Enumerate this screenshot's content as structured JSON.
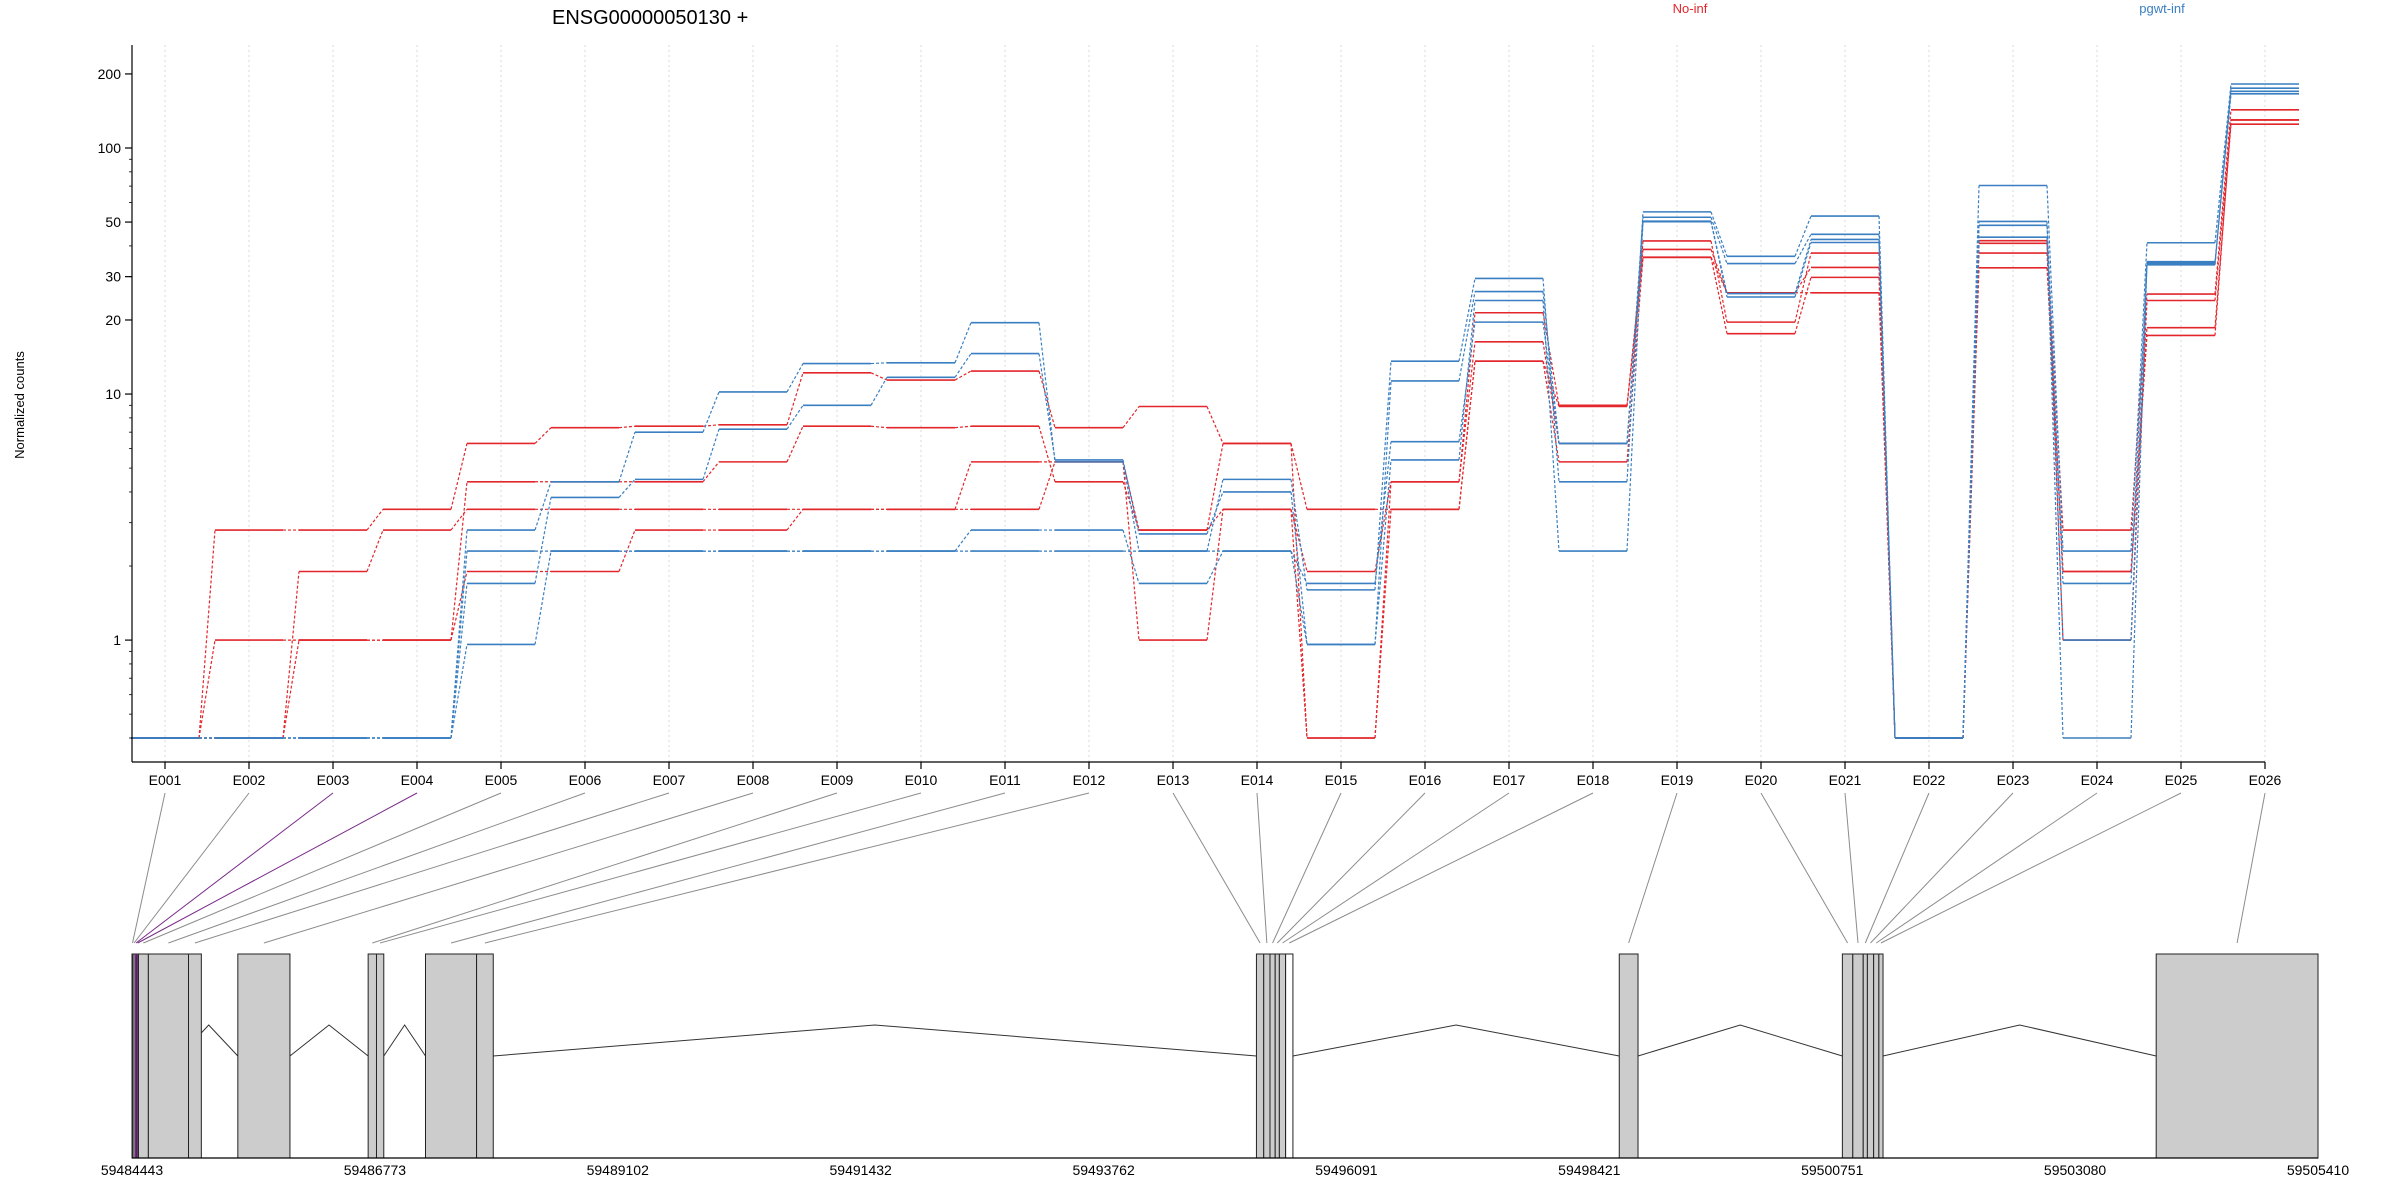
{
  "chart_data": {
    "type": "line",
    "title": "ENSG00000050130 +",
    "ylabel": "Normalized counts",
    "y_scale": "log",
    "y_ticks": [
      "200",
      "100",
      "50",
      "30",
      "20",
      "10",
      "1"
    ],
    "y_tick_values": [
      200,
      100,
      50,
      30,
      20,
      10,
      1
    ],
    "ylim": [
      0.4,
      230
    ],
    "zero_floor": 0.4,
    "grid": "vertical dotted lines per exon",
    "legend": [
      {
        "name": "No-inf",
        "color": "#e3262b"
      },
      {
        "name": "pgwt-inf",
        "color": "#3a7fc1"
      }
    ],
    "categories": [
      "E001",
      "E002",
      "E003",
      "E004",
      "E005",
      "E006",
      "E007",
      "E008",
      "E009",
      "E010",
      "E011",
      "E012",
      "E013",
      "E014",
      "E015",
      "E016",
      "E017",
      "E018",
      "E019",
      "E020",
      "E021",
      "E022",
      "E023",
      "E024",
      "E025",
      "E026"
    ],
    "series": [
      {
        "group": "No-inf",
        "values": [
          0.4,
          2.8,
          2.8,
          3.4,
          6.3,
          7.3,
          7.4,
          7.5,
          12.2,
          11.4,
          12.4,
          7.3,
          8.9,
          6.3,
          3.4,
          3.4,
          13.6,
          8.9,
          38.7,
          25.8,
          32.7,
          0.4,
          42.0,
          2.8,
          25.5,
          143
        ]
      },
      {
        "group": "No-inf",
        "values": [
          0.4,
          1.0,
          1.0,
          1.0,
          4.4,
          4.4,
          4.4,
          5.3,
          7.4,
          7.3,
          7.4,
          4.4,
          2.8,
          3.4,
          1.9,
          4.4,
          16.3,
          6.3,
          41.9,
          19.6,
          37.4,
          0.4,
          37.4,
          1.9,
          18.6,
          125
        ]
      },
      {
        "group": "No-inf",
        "values": [
          0.4,
          0.4,
          1.9,
          2.8,
          3.4,
          3.4,
          3.4,
          3.4,
          3.4,
          3.4,
          3.4,
          5.3,
          1.0,
          3.4,
          0.4,
          3.4,
          13.6,
          5.3,
          35.9,
          17.6,
          29.8,
          0.4,
          32.6,
          1.9,
          17.3,
          130
        ]
      },
      {
        "group": "No-inf",
        "values": [
          0.4,
          0.4,
          1.0,
          1.0,
          1.9,
          1.9,
          2.8,
          2.8,
          3.4,
          3.4,
          5.3,
          5.3,
          2.8,
          6.3,
          0.4,
          4.4,
          21.4,
          9.0,
          36.0,
          25.8,
          25.8,
          0.4,
          41.0,
          1.0,
          24.0,
          130
        ]
      },
      {
        "group": "pgwt-inf",
        "values": [
          0.4,
          0.4,
          0.4,
          0.4,
          2.8,
          4.4,
          7.0,
          10.2,
          13.3,
          13.4,
          19.5,
          5.3,
          2.3,
          4.5,
          1.6,
          13.6,
          29.5,
          4.4,
          55.0,
          36.3,
          52.9,
          0.4,
          70.4,
          2.3,
          41.2,
          182
        ]
      },
      {
        "group": "pgwt-inf",
        "values": [
          0.4,
          0.4,
          0.4,
          0.4,
          1.7,
          3.8,
          4.5,
          7.2,
          9.0,
          11.7,
          14.6,
          5.4,
          2.7,
          4.0,
          0.96,
          11.3,
          26.1,
          6.3,
          52.3,
          33.9,
          44.6,
          0.4,
          50.3,
          1.7,
          34.5,
          170
        ]
      },
      {
        "group": "pgwt-inf",
        "values": [
          0.4,
          0.4,
          0.4,
          0.4,
          2.3,
          2.3,
          2.3,
          2.3,
          2.3,
          2.3,
          2.8,
          2.8,
          1.7,
          2.3,
          1.7,
          6.4,
          19.6,
          6.3,
          50.4,
          25.6,
          42.5,
          0.4,
          48.5,
          1.0,
          33.5,
          175
        ]
      },
      {
        "group": "pgwt-inf",
        "values": [
          0.4,
          0.4,
          0.4,
          0.4,
          0.96,
          2.3,
          2.3,
          2.3,
          2.3,
          2.3,
          2.3,
          2.3,
          2.3,
          2.3,
          0.96,
          5.4,
          24.0,
          2.3,
          50.2,
          24.8,
          41.3,
          0.4,
          43.4,
          0.4,
          34.0,
          166
        ]
      }
    ],
    "gene_model": {
      "genomic_range": [
        59484443,
        59505410
      ],
      "axis_ticks": [
        "59484443",
        "59486773",
        "59489102",
        "59491432",
        "59493762",
        "59496091",
        "59498421",
        "59500751",
        "59503080",
        "59505410"
      ],
      "axis_tick_values": [
        59484443,
        59486773,
        59489102,
        59491432,
        59493762,
        59496091,
        59498421,
        59500751,
        59503080,
        59505410
      ],
      "exons": [
        {
          "id": "E001",
          "start": 59484443,
          "end": 59484453,
          "fill": "#cccccc"
        },
        {
          "id": "E002",
          "start": 59484453,
          "end": 59484473,
          "fill": "#cccccc"
        },
        {
          "id": "E003",
          "start": 59484473,
          "end": 59484490,
          "fill": "#cccccc",
          "highlight": "#7a2a8a"
        },
        {
          "id": "E004",
          "start": 59484490,
          "end": 59484505,
          "fill": "#cccccc",
          "highlight": "#7a2a8a"
        },
        {
          "id": "E005",
          "start": 59484505,
          "end": 59484600,
          "fill": "#cccccc"
        },
        {
          "id": "E006",
          "start": 59484600,
          "end": 59484985,
          "fill": "#cccccc"
        },
        {
          "id": "E007",
          "start": 59484985,
          "end": 59485108,
          "fill": "#cccccc"
        },
        {
          "id": "E008",
          "start": 59485458,
          "end": 59485958,
          "fill": "#cccccc"
        },
        {
          "id": "E009",
          "start": 59486708,
          "end": 59486788,
          "fill": "#cccccc"
        },
        {
          "id": "E010",
          "start": 59486788,
          "end": 59486858,
          "fill": "#cccccc"
        },
        {
          "id": "E011",
          "start": 59487258,
          "end": 59487748,
          "fill": "#cccccc"
        },
        {
          "id": "E012",
          "start": 59487748,
          "end": 59487908,
          "fill": "#cccccc"
        },
        {
          "id": "E013",
          "start": 59495228,
          "end": 59495298,
          "fill": "#cccccc"
        },
        {
          "id": "E014",
          "start": 59495298,
          "end": 59495358,
          "fill": "#cccccc"
        },
        {
          "id": "E015",
          "start": 59495358,
          "end": 59495408,
          "fill": "#cccccc"
        },
        {
          "id": "E016",
          "start": 59495408,
          "end": 59495448,
          "fill": "#cccccc"
        },
        {
          "id": "E017",
          "start": 59495448,
          "end": 59495508,
          "fill": "#cccccc"
        },
        {
          "id": "E018",
          "start": 59495508,
          "end": 59495578,
          "fill": "#ffffff"
        },
        {
          "id": "E019",
          "start": 59498708,
          "end": 59498888,
          "fill": "#cccccc"
        },
        {
          "id": "E020",
          "start": 59500848,
          "end": 59500948,
          "fill": "#cccccc"
        },
        {
          "id": "E021",
          "start": 59500948,
          "end": 59501048,
          "fill": "#cccccc"
        },
        {
          "id": "E022",
          "start": 59501048,
          "end": 59501088,
          "fill": "#cccccc"
        },
        {
          "id": "E023",
          "start": 59501088,
          "end": 59501148,
          "fill": "#cccccc"
        },
        {
          "id": "E024",
          "start": 59501148,
          "end": 59501198,
          "fill": "#cccccc"
        },
        {
          "id": "E025",
          "start": 59501198,
          "end": 59501238,
          "fill": "#cccccc"
        },
        {
          "id": "E026",
          "start": 59503858,
          "end": 59505410,
          "fill": "#cccccc"
        }
      ],
      "introns": [
        [
          59484900,
          59485458
        ],
        [
          59485958,
          59486708
        ],
        [
          59486858,
          59487258
        ],
        [
          59487908,
          59495228
        ],
        [
          59495578,
          59498708
        ],
        [
          59498888,
          59500848
        ],
        [
          59501238,
          59503858
        ]
      ]
    }
  }
}
